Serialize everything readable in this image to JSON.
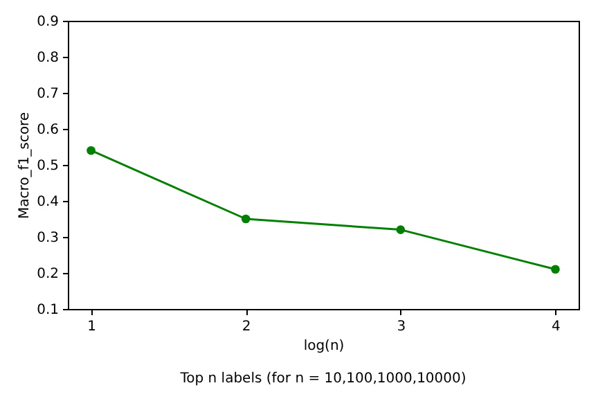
{
  "chart_data": {
    "type": "line",
    "xlabel": "log(n)",
    "ylabel": "Macro_f1_score",
    "annotations": [
      "Top n labels  (for n = 10,100,1000,10000)"
    ],
    "x": [
      1,
      2,
      3,
      4
    ],
    "series": [
      {
        "color": "#008000",
        "values": [
          0.54,
          0.35,
          0.32,
          0.21
        ]
      }
    ],
    "xlim": [
      0.85,
      4.15
    ],
    "xticks": [
      1,
      2,
      3,
      4
    ],
    "ylim": [
      0.1,
      0.9
    ],
    "yticks": [
      0.1,
      0.2,
      0.3,
      0.4,
      0.5,
      0.6,
      0.7,
      0.8,
      0.9
    ],
    "marker": "circle",
    "line_style": "solid"
  }
}
